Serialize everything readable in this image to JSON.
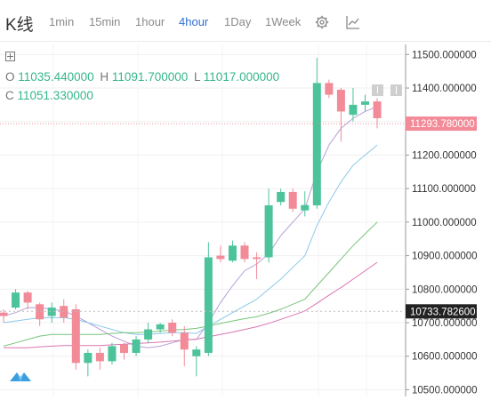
{
  "toolbar": {
    "title": "K线",
    "timeframes": [
      "1min",
      "15min",
      "1hour",
      "4hour",
      "1Day",
      "1Week"
    ],
    "active_timeframe": "4hour",
    "icons": [
      "gear-icon",
      "indicator-chart-icon"
    ]
  },
  "ohlc": {
    "o_label": "O",
    "o_value": "11035.440000",
    "h_label": "H",
    "h_value": "11091.700000",
    "l_label": "L",
    "l_value": "11017.000000",
    "c_label": "C",
    "c_value": "11051.330000"
  },
  "colors": {
    "up": "#4cc39a",
    "down": "#f28a98",
    "ma1": "#b79fd6",
    "ma2": "#8bc8e8",
    "ma3": "#79c47a",
    "ma4": "#d976b0",
    "price_tag": "#f28a98",
    "marker_tag": "#222222"
  },
  "chart_data": {
    "type": "candlestick",
    "y_axis": {
      "min": 10480,
      "max": 11530,
      "ticks": [
        "11500.000000",
        "11400.000000",
        "11300.000000",
        "11200.000000",
        "11100.000000",
        "11000.000000",
        "10900.000000",
        "10800.000000",
        "10700.000000",
        "10600.000000",
        "10500.000000"
      ],
      "tick_values": [
        11500,
        11400,
        11300,
        11200,
        11100,
        11000,
        10900,
        10800,
        10700,
        10600,
        10500
      ]
    },
    "current_price": {
      "value": 11293.78,
      "label": "11293.780000"
    },
    "marker_price": {
      "value": 10733.7826,
      "label": "10733.782600"
    },
    "grid": true,
    "candles": [
      [
        10730,
        10740,
        10700,
        10720
      ],
      [
        10745,
        10800,
        10740,
        10790
      ],
      [
        10790,
        10795,
        10740,
        10760
      ],
      [
        10755,
        10760,
        10690,
        10710
      ],
      [
        10720,
        10760,
        10700,
        10745
      ],
      [
        10750,
        10770,
        10700,
        10715
      ],
      [
        10740,
        10755,
        10560,
        10580
      ],
      [
        10580,
        10620,
        10540,
        10610
      ],
      [
        10610,
        10625,
        10560,
        10585
      ],
      [
        10585,
        10640,
        10575,
        10630
      ],
      [
        10635,
        10640,
        10590,
        10610
      ],
      [
        10610,
        10660,
        10600,
        10650
      ],
      [
        10650,
        10700,
        10640,
        10680
      ],
      [
        10680,
        10700,
        10670,
        10695
      ],
      [
        10700,
        10710,
        10660,
        10670
      ],
      [
        10670,
        10690,
        10570,
        10620
      ],
      [
        10600,
        10630,
        10540,
        10620
      ],
      [
        10610,
        10940,
        10600,
        10895
      ],
      [
        10900,
        10930,
        10880,
        10890
      ],
      [
        10885,
        10945,
        10880,
        10930
      ],
      [
        10930,
        10940,
        10880,
        10890
      ],
      [
        10895,
        10910,
        10830,
        10890
      ],
      [
        10895,
        11100,
        10880,
        11050
      ],
      [
        11060,
        11100,
        11050,
        11090
      ],
      [
        11090,
        11100,
        11030,
        11040
      ],
      [
        11035,
        11092,
        11017,
        11051
      ],
      [
        11050,
        11490,
        11040,
        11415
      ],
      [
        11415,
        11425,
        11370,
        11380
      ],
      [
        11395,
        11400,
        11240,
        11330
      ],
      [
        11320,
        11400,
        11300,
        11350
      ],
      [
        11350,
        11380,
        11330,
        11360
      ],
      [
        11360,
        11370,
        11280,
        11310
      ]
    ],
    "ma_lines": [
      {
        "name": "ma1",
        "values": [
          10720,
          10730,
          10745,
          10745,
          10740,
          10735,
          10720,
          10700,
          10680,
          10660,
          10645,
          10630,
          10625,
          10630,
          10640,
          10650,
          10650,
          10700,
          10760,
          10810,
          10855,
          10875,
          10905,
          10960,
          11000,
          11040,
          11150,
          11230,
          11280,
          11310,
          11330,
          11345
        ]
      },
      {
        "name": "ma2",
        "values": [
          10700,
          10705,
          10710,
          10715,
          10715,
          10715,
          10710,
          10700,
          10690,
          10680,
          10670,
          10665,
          10665,
          10668,
          10670,
          10670,
          10668,
          10690,
          10710,
          10730,
          10750,
          10770,
          10800,
          10830,
          10865,
          10900,
          10990,
          11060,
          11120,
          11170,
          11200,
          11230
        ]
      },
      {
        "name": "ma3",
        "values": [
          10630,
          10640,
          10650,
          10660,
          10665,
          10665,
          10665,
          10665,
          10665,
          10668,
          10670,
          10670,
          10672,
          10675,
          10678,
          10680,
          10683,
          10690,
          10698,
          10705,
          10712,
          10718,
          10728,
          10740,
          10755,
          10770,
          10810,
          10850,
          10890,
          10930,
          10965,
          11000
        ]
      },
      {
        "name": "ma4",
        "values": [
          10625,
          10625,
          10625,
          10628,
          10630,
          10632,
          10632,
          10632,
          10632,
          10634,
          10636,
          10638,
          10640,
          10642,
          10645,
          10648,
          10651,
          10658,
          10665,
          10672,
          10680,
          10688,
          10698,
          10710,
          10722,
          10735,
          10758,
          10782,
          10805,
          10830,
          10855,
          10880
        ]
      }
    ]
  }
}
